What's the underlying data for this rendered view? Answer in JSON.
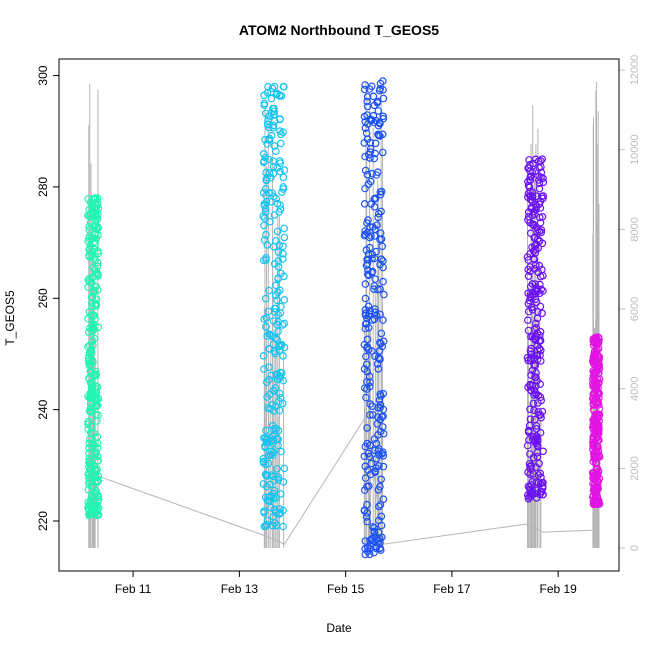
{
  "chart_data": {
    "type": "scatter",
    "title": "ATOM2 Northbound T_GEOS5",
    "xlabel": "Date",
    "ylabel": "T_GEOS5",
    "xlim_days": [
      9.85,
      19.9
    ],
    "ylim": [
      213,
      301
    ],
    "y2lim": [
      -300,
      12000
    ],
    "x_ticks": [
      {
        "day": 11,
        "label": "Feb 11"
      },
      {
        "day": 13,
        "label": "Feb 13"
      },
      {
        "day": 15,
        "label": "Feb 15"
      },
      {
        "day": 17,
        "label": "Feb 17"
      },
      {
        "day": 19,
        "label": "Feb 19"
      }
    ],
    "y_ticks": [
      220,
      240,
      260,
      280,
      300
    ],
    "y2_ticks": [
      0,
      2000,
      4000,
      6000,
      8000,
      10000,
      12000
    ],
    "grid": false,
    "series": [
      {
        "color": "#21f5b2",
        "x_range": [
          10.15,
          10.35
        ],
        "y_range": [
          221,
          278
        ]
      },
      {
        "color": "#16c3f0",
        "x_range": [
          13.45,
          13.85
        ],
        "y_range": [
          219,
          298
        ]
      },
      {
        "color": "#1d52f5",
        "x_range": [
          15.35,
          15.72
        ],
        "y_range": [
          214,
          299
        ]
      },
      {
        "color": "#6b12f5",
        "x_range": [
          18.42,
          18.72
        ],
        "y_range": [
          224,
          285
        ]
      },
      {
        "color": "#e315e3",
        "x_range": [
          19.65,
          19.78
        ],
        "y_range": [
          223,
          253
        ]
      }
    ],
    "secondary_line": {
      "color": "#b5b5b5",
      "points": [
        [
          10.35,
          1800
        ],
        [
          13.5,
          300
        ],
        [
          13.85,
          100
        ],
        [
          15.38,
          3300
        ],
        [
          15.72,
          100
        ],
        [
          18.4,
          600
        ],
        [
          18.72,
          400
        ],
        [
          19.7,
          450
        ]
      ]
    }
  }
}
